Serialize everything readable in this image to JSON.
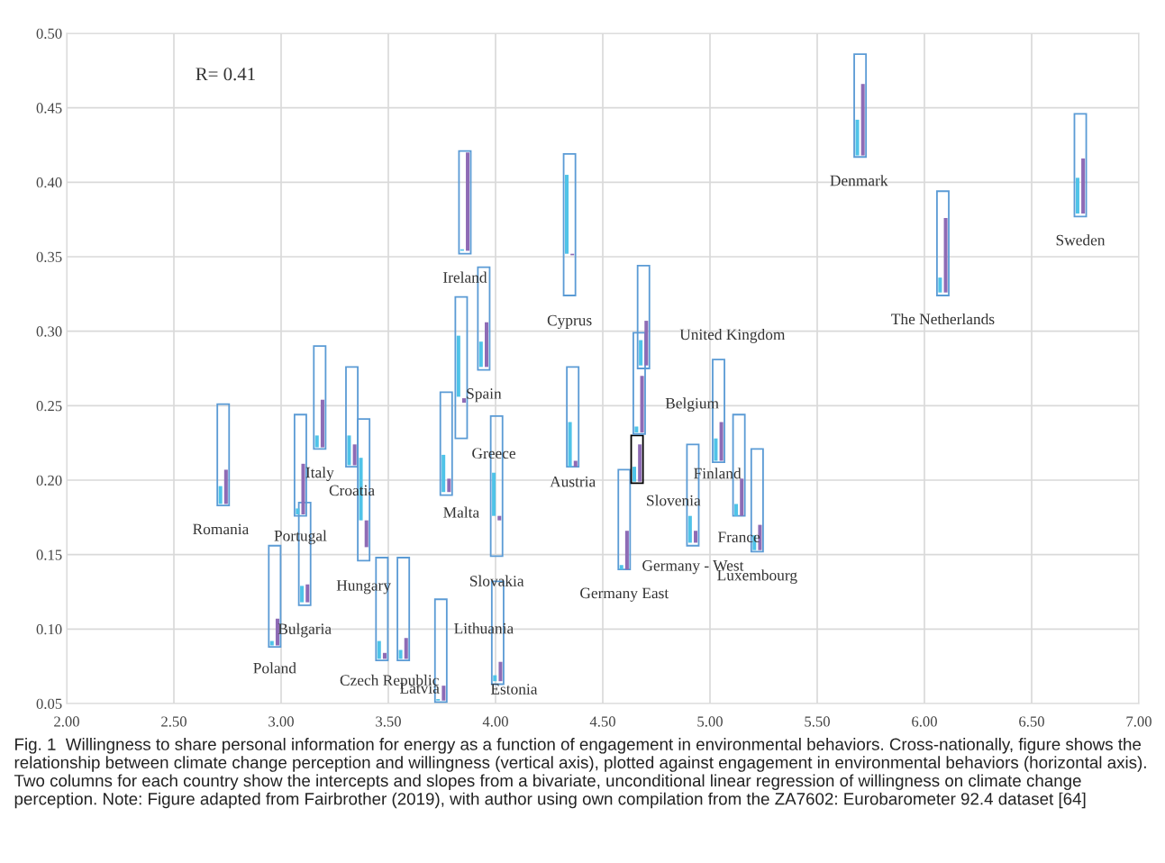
{
  "chart_data": {
    "type": "bar",
    "xlim": [
      2,
      7
    ],
    "xticks": [
      {
        "value": 2,
        "label": "2.00"
      },
      {
        "value": 2.5,
        "label": "2.50"
      },
      {
        "value": 3,
        "label": "3.00"
      },
      {
        "value": 3.5,
        "label": "3.50"
      },
      {
        "value": 4,
        "label": "4.00"
      },
      {
        "value": 4.5,
        "label": "4.50"
      },
      {
        "value": 5,
        "label": "5.00"
      },
      {
        "value": 5.5,
        "label": "5.50"
      },
      {
        "value": 6,
        "label": "6.00"
      },
      {
        "value": 6.5,
        "label": "6.50"
      },
      {
        "value": 7,
        "label": "7.00"
      }
    ],
    "ylim": [
      0.05,
      0.5
    ],
    "yticks": [
      {
        "value": 0.05,
        "label": "0.05"
      },
      {
        "value": 0.1,
        "label": "0.10"
      },
      {
        "value": 0.15,
        "label": "0.15"
      },
      {
        "value": 0.2,
        "label": "0.20"
      },
      {
        "value": 0.25,
        "label": "0.25"
      },
      {
        "value": 0.3,
        "label": "0.30"
      },
      {
        "value": 0.35,
        "label": "0.35"
      },
      {
        "value": 0.4,
        "label": "0.40"
      },
      {
        "value": 0.45,
        "label": "0.45"
      },
      {
        "value": 0.5,
        "label": "0.50"
      }
    ],
    "grid": true,
    "series": [
      {
        "color": "#5b9bd5",
        "colors": [
          null,
          null,
          null,
          null,
          null,
          null,
          null,
          null,
          null,
          null,
          null,
          null,
          null,
          null,
          null,
          null,
          null,
          null,
          null,
          "#000000",
          null,
          null,
          null,
          null,
          null,
          null,
          null,
          null,
          null
        ],
        "x": [
          2.73,
          2.97,
          3.09,
          3.11,
          3.18,
          3.33,
          3.385,
          3.47,
          3.57,
          3.745,
          3.77,
          3.84,
          3.857,
          3.945,
          4.005,
          4.01,
          4.345,
          4.36,
          4.6,
          4.66,
          4.67,
          4.69,
          4.92,
          5.04,
          5.135,
          5.22,
          5.7,
          6.086,
          6.727
        ],
        "base": [
          0.183,
          0.088,
          0.176,
          0.116,
          0.221,
          0.209,
          0.146,
          0.079,
          0.079,
          0.051,
          0.19,
          0.228,
          0.352,
          0.274,
          0.149,
          0.063,
          0.324,
          0.209,
          0.14,
          0.198,
          0.231,
          0.275,
          0.156,
          0.212,
          0.176,
          0.152,
          0.417,
          0.324,
          0.377
        ],
        "values": [
          0.068,
          0.068,
          0.068,
          0.069,
          0.069,
          0.067,
          0.095,
          0.069,
          0.069,
          0.069,
          0.069,
          0.095,
          0.069,
          0.069,
          0.094,
          0.069,
          0.095,
          0.067,
          0.067,
          0.032,
          0.068,
          0.069,
          0.068,
          0.069,
          0.068,
          0.069,
          0.069,
          0.07,
          0.069
        ]
      },
      {
        "color": "#4fc3e8",
        "x": [
          2.717,
          2.957,
          3.077,
          3.097,
          3.167,
          3.317,
          3.372,
          3.457,
          3.557,
          3.732,
          3.757,
          3.827,
          3.844,
          3.932,
          3.992,
          3.997,
          4.332,
          4.347,
          4.587,
          4.647,
          4.657,
          4.677,
          4.907,
          5.027,
          5.122,
          5.207,
          5.687,
          6.073,
          6.714
        ],
        "base": [
          0.184,
          0.089,
          0.177,
          0.118,
          0.222,
          0.21,
          0.173,
          0.08,
          0.08,
          0.052,
          0.192,
          0.256,
          0.354,
          0.276,
          0.176,
          0.065,
          0.352,
          0.209,
          0.14,
          0.199,
          0.232,
          0.277,
          0.158,
          0.213,
          0.176,
          0.153,
          0.418,
          0.326,
          0.379
        ],
        "values": [
          0.012,
          0.003,
          0.004,
          0.011,
          0.008,
          0.02,
          0.042,
          0.012,
          0.006,
          0.001,
          0.025,
          0.041,
          0.001,
          0.017,
          0.029,
          0.004,
          0.053,
          0.03,
          0.003,
          0.01,
          0.004,
          0.017,
          0.018,
          0.015,
          0.008,
          0.01,
          0.024,
          0.01,
          0.024
        ]
      },
      {
        "color": "#8e6bb5",
        "x": [
          2.743,
          2.983,
          3.103,
          3.123,
          3.193,
          3.343,
          3.398,
          3.483,
          3.583,
          3.758,
          3.783,
          3.853,
          3.87,
          3.958,
          4.018,
          4.023,
          4.358,
          4.373,
          4.613,
          4.673,
          4.683,
          4.703,
          4.933,
          5.053,
          5.148,
          5.233,
          5.713,
          6.099,
          6.74
        ],
        "base": [
          0.184,
          0.089,
          0.177,
          0.118,
          0.222,
          0.21,
          0.155,
          0.08,
          0.08,
          0.052,
          0.192,
          0.252,
          0.354,
          0.276,
          0.173,
          0.065,
          0.351,
          0.209,
          0.14,
          0.199,
          0.232,
          0.277,
          0.158,
          0.213,
          0.176,
          0.153,
          0.418,
          0.326,
          0.379
        ],
        "values": [
          0.023,
          0.018,
          0.034,
          0.012,
          0.032,
          0.014,
          0.018,
          0.004,
          0.014,
          0.01,
          0.009,
          0.003,
          0.066,
          0.03,
          0.003,
          0.013,
          0.001,
          0.004,
          0.026,
          0.025,
          0.038,
          0.03,
          0.008,
          0.026,
          0.025,
          0.017,
          0.048,
          0.05,
          0.037
        ]
      }
    ],
    "annotations": [
      "R= 0.41",
      {
        "text": "Ireland",
        "x": 3.857,
        "y": 0.352
      },
      {
        "text": "Cyprus",
        "x": 4.345,
        "y": 0.324
      },
      {
        "text": "Denmark",
        "x": 5.7,
        "y": 0.417
      },
      {
        "text": "The Netherlands",
        "x": 6.086,
        "y": 0.324
      },
      {
        "text": "Sweden",
        "x": 6.727,
        "y": 0.377
      },
      {
        "text": "United Kingdom",
        "x": 4.69,
        "y": 0.275
      },
      {
        "text": "Belgium",
        "x": 4.683,
        "y": 0.27
      },
      {
        "text": "Spain",
        "x": 3.945,
        "y": 0.274
      },
      {
        "text": "Greece",
        "x": 3.84,
        "y": 0.228
      },
      {
        "text": "Austria",
        "x": 4.36,
        "y": 0.209
      },
      {
        "text": "Malta",
        "x": 3.77,
        "y": 0.19
      },
      {
        "text": "Finland",
        "x": 5.04,
        "y": 0.212
      },
      {
        "text": "Slovenia",
        "x": 4.66,
        "y": 0.198
      },
      {
        "text": "France",
        "x": 5.135,
        "y": 0.176
      },
      {
        "text": "Germany - West",
        "x": 4.92,
        "y": 0.156
      },
      {
        "text": "Luxembourg",
        "x": 5.22,
        "y": 0.152
      },
      {
        "text": "Germany East",
        "x": 4.6,
        "y": 0.14
      },
      {
        "text": "Romania",
        "x": 2.73,
        "y": 0.183
      },
      {
        "text": "Portugal",
        "x": 3.09,
        "y": 0.176
      },
      {
        "text": "Italy",
        "x": 3.18,
        "y": 0.221
      },
      {
        "text": "Croatia",
        "x": 3.33,
        "y": 0.209
      },
      {
        "text": "Hungary",
        "x": 3.385,
        "y": 0.146
      },
      {
        "text": "Slovakia",
        "x": 4.005,
        "y": 0.149
      },
      "Lithuania",
      {
        "text": "Bulgaria",
        "x": 3.11,
        "y": 0.116
      },
      {
        "text": "Poland",
        "x": 2.97,
        "y": 0.088
      },
      {
        "text": "Czech Republic",
        "x": 3.47,
        "y": 0.079
      },
      {
        "text": "Latvia",
        "x": 3.745,
        "y": 0.051
      },
      {
        "text": "Estonia",
        "x": 4.01,
        "y": 0.063
      },
      "Fig. 1  Willingness to share personal information for energy as a function of engagement in environmental behaviors. Cross-nationally, figure shows the relationship between climate change perception and willingness (vertical axis), plotted against engagement in environmental behaviors (horizontal axis). Two columns for each country show the intercepts and slopes from a bivariate, unconditional linear regression of willingness on climate change perception. Note: Figure adapted from Fairbrother (2019), with author using own compilation from the ZA7602: Eurobarometer 92.4 dataset [64]"
    ]
  }
}
